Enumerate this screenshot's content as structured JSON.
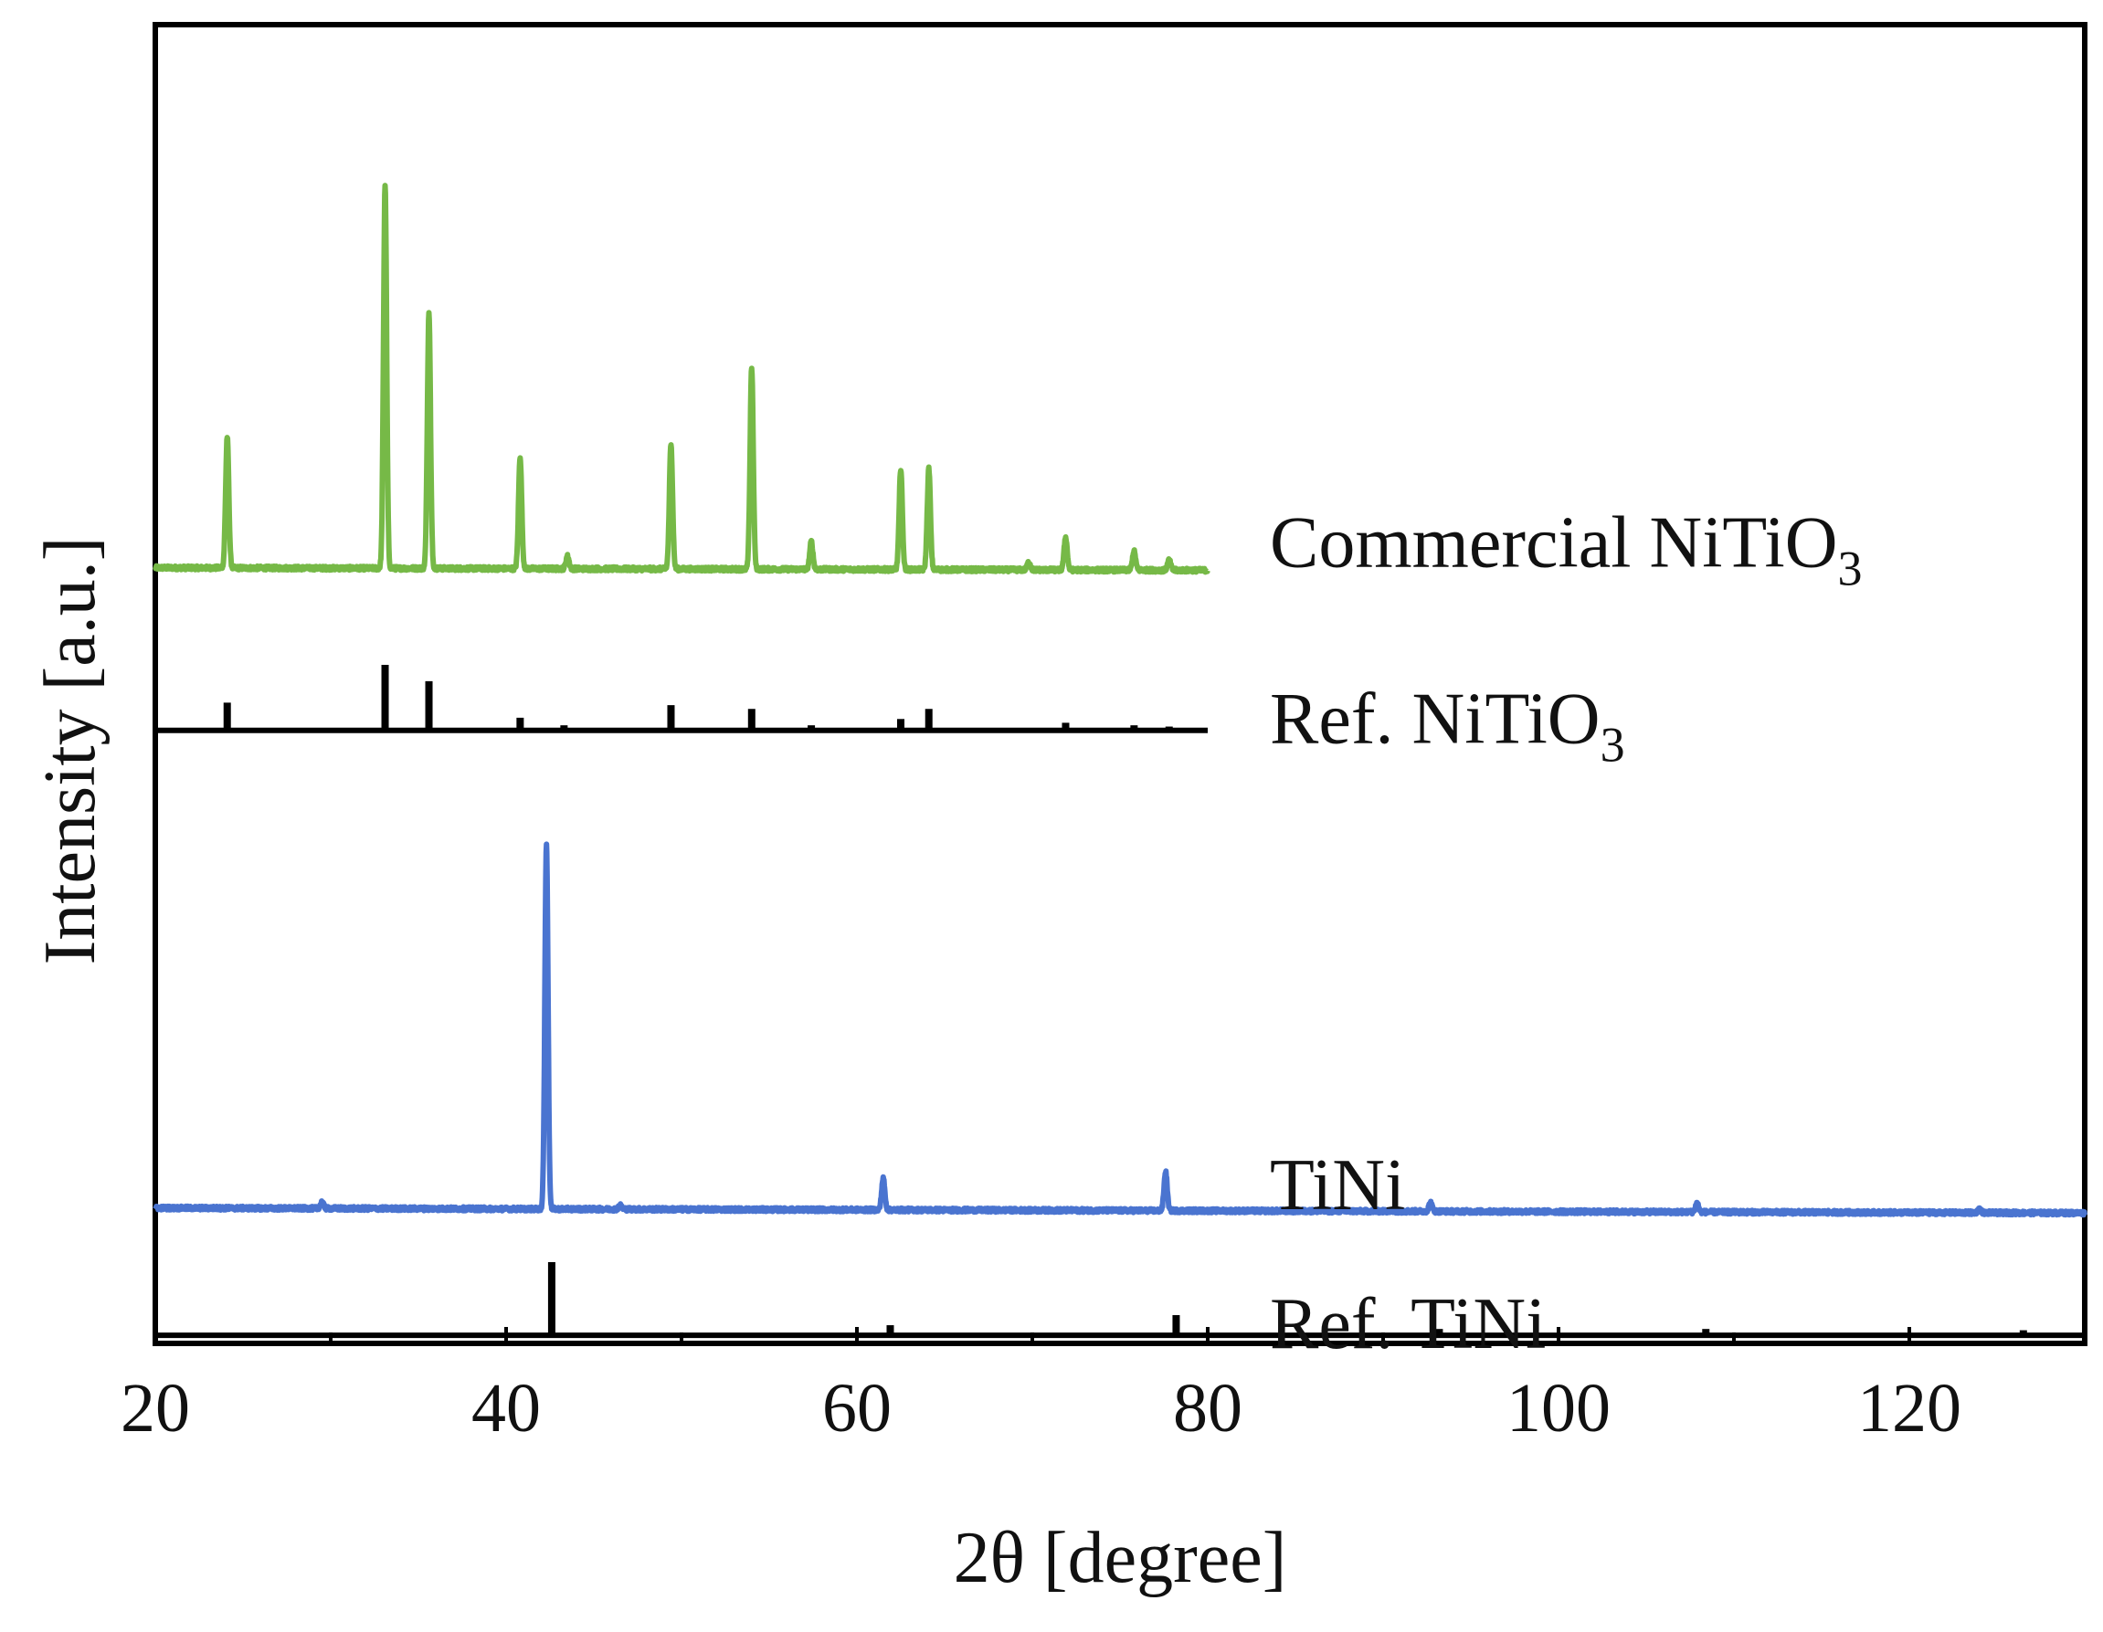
{
  "chart_data": {
    "type": "line",
    "title": "",
    "xlabel": "2θ [degree]",
    "ylabel": "Intensity [a.u.]",
    "xlim": [
      20,
      130
    ],
    "xticks": [
      20,
      40,
      60,
      80,
      100,
      120
    ],
    "minor_xtick_step": 10,
    "yticks": false,
    "grid": false,
    "legend": "inline labels at right of each trace",
    "series": [
      {
        "name": "Commercial NiTiO3",
        "label_main": "Commercial  NiTiO",
        "label_sub": "3",
        "kind": "pattern",
        "color": "#76b947",
        "x_range": [
          20,
          80
        ],
        "baseline_start": 0.64,
        "baseline_end": 0.62,
        "peaks": [
          {
            "x": 24.1,
            "h": 1.04
          },
          {
            "x": 33.1,
            "h": 3.04
          },
          {
            "x": 35.6,
            "h": 2.03
          },
          {
            "x": 40.8,
            "h": 0.89
          },
          {
            "x": 43.5,
            "h": 0.1
          },
          {
            "x": 49.4,
            "h": 1.0
          },
          {
            "x": 54.0,
            "h": 1.6
          },
          {
            "x": 57.4,
            "h": 0.22
          },
          {
            "x": 62.5,
            "h": 0.8
          },
          {
            "x": 64.1,
            "h": 0.8
          },
          {
            "x": 69.8,
            "h": 0.06
          },
          {
            "x": 71.9,
            "h": 0.26
          },
          {
            "x": 75.8,
            "h": 0.15
          },
          {
            "x": 77.8,
            "h": 0.08
          }
        ]
      },
      {
        "name": "Ref. NiTiO3",
        "label_main": "Ref. NiTiO",
        "label_sub": "3",
        "kind": "sticks",
        "color": "#000000",
        "x_range": [
          20,
          80
        ],
        "baseline": -0.65,
        "sticks": [
          {
            "x": 24.1,
            "h": 0.22
          },
          {
            "x": 33.1,
            "h": 0.52
          },
          {
            "x": 35.6,
            "h": 0.39
          },
          {
            "x": 40.8,
            "h": 0.1
          },
          {
            "x": 43.3,
            "h": 0.04
          },
          {
            "x": 49.4,
            "h": 0.2
          },
          {
            "x": 54.0,
            "h": 0.17
          },
          {
            "x": 57.4,
            "h": 0.04
          },
          {
            "x": 62.5,
            "h": 0.09
          },
          {
            "x": 64.1,
            "h": 0.17
          },
          {
            "x": 71.9,
            "h": 0.06
          },
          {
            "x": 75.8,
            "h": 0.04
          },
          {
            "x": 77.8,
            "h": 0.03
          }
        ]
      },
      {
        "name": "TiNi",
        "label_main": "TiNi",
        "label_sub": "",
        "kind": "pattern",
        "color": "#4a74d0",
        "x_range": [
          20,
          130
        ],
        "baseline_start": -4.44,
        "baseline_end": -4.48,
        "peaks": [
          {
            "x": 29.5,
            "h": 0.05
          },
          {
            "x": 42.3,
            "h": 2.9
          },
          {
            "x": 46.5,
            "h": 0.03
          },
          {
            "x": 61.5,
            "h": 0.25
          },
          {
            "x": 77.6,
            "h": 0.31
          },
          {
            "x": 92.7,
            "h": 0.07
          },
          {
            "x": 107.9,
            "h": 0.07
          },
          {
            "x": 124.0,
            "h": 0.03
          }
        ]
      },
      {
        "name": "Ref. TiNi",
        "label_main": "Ref. TiNi",
        "label_sub": "",
        "kind": "sticks",
        "color": "#000000",
        "x_range": [
          20,
          130
        ],
        "baseline": -5.45,
        "sticks": [
          {
            "x": 42.6,
            "h": 0.58
          },
          {
            "x": 61.9,
            "h": 0.08
          },
          {
            "x": 78.2,
            "h": 0.16
          },
          {
            "x": 93.2,
            "h": 0.05
          },
          {
            "x": 108.4,
            "h": 0.05
          },
          {
            "x": 126.5,
            "h": 0.04
          }
        ]
      }
    ]
  }
}
